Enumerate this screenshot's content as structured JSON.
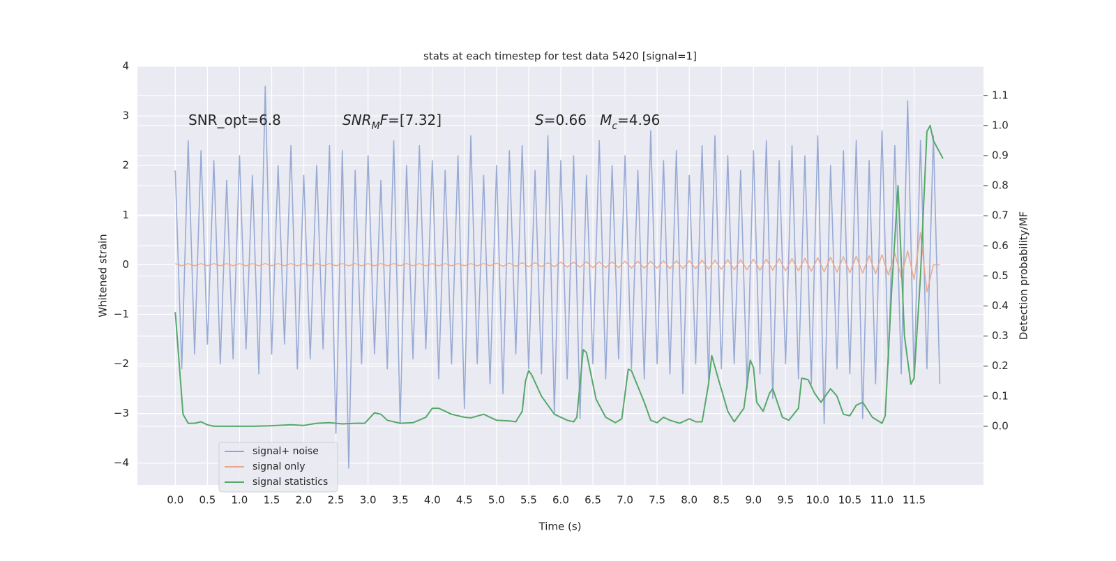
{
  "chart_data": {
    "type": "line",
    "title": "stats at each timestep for test data 5420 [signal=1]",
    "xlabel": "Time (s)",
    "ylabel": "Whitened strain",
    "y2label": "Detection probability/MF",
    "xlim": [
      -0.59,
      12.58
    ],
    "ylim": [
      -4.44,
      4.0
    ],
    "y2lim": [
      -0.195,
      1.197
    ],
    "xticks": [
      {
        "value": 0,
        "label": "0.0"
      },
      0.5,
      {
        "value": 1,
        "label": "1.0"
      },
      1.5,
      {
        "value": 2,
        "label": "2.0"
      },
      2.5,
      {
        "value": 3,
        "label": "3.0"
      },
      3.5,
      {
        "value": 4,
        "label": "4.0"
      },
      4.5,
      {
        "value": 5,
        "label": "5.0"
      },
      5.5,
      {
        "value": 6,
        "label": "6.0"
      },
      6.5,
      {
        "value": 7,
        "label": "7.0"
      },
      7.5,
      {
        "value": 8,
        "label": "8.0"
      },
      8.5,
      {
        "value": 9,
        "label": "9.0"
      },
      9.5,
      {
        "value": 10,
        "label": "10.0"
      },
      10.5,
      {
        "value": 11,
        "label": "11.0"
      },
      11.5
    ],
    "yticks": [
      {
        "value": -4,
        "label": "−4"
      },
      {
        "value": -3,
        "label": "−3"
      },
      {
        "value": -2,
        "label": "−2"
      },
      {
        "value": -1,
        "label": "−1"
      },
      0,
      1,
      2,
      3,
      4
    ],
    "y2ticks": [
      {
        "value": 0,
        "label": "0.0"
      },
      0.1,
      0.2,
      0.3,
      0.4,
      0.5,
      0.6,
      0.7,
      0.8,
      0.9,
      {
        "value": 1,
        "label": "1.0"
      },
      1.1
    ],
    "grid": true,
    "legend": "lower left",
    "annotations": [
      {
        "parts": [
          {
            "text": "SNR_opt=6.8"
          }
        ]
      },
      {
        "parts": [
          {
            "text": "SNR",
            "italic": true
          },
          {
            "text": "M",
            "italic": true,
            "sub": true
          },
          {
            "text": "F",
            "italic": true
          },
          {
            "text": "=[7.32]"
          }
        ]
      },
      {
        "parts": [
          {
            "text": "S",
            "italic": true
          },
          {
            "text": "=0.66   "
          },
          {
            "text": "M",
            "italic": true
          },
          {
            "text": "c",
            "italic": true,
            "sub": true
          },
          {
            "text": "=4.96"
          }
        ]
      }
    ],
    "x": [
      0,
      0.1,
      0.2,
      0.3,
      0.4,
      0.5,
      0.6,
      0.7,
      0.8,
      0.9,
      1,
      1.1,
      1.2,
      1.3,
      1.4,
      1.5,
      1.6,
      1.7,
      1.8,
      1.9,
      2,
      2.1,
      2.2,
      2.3,
      2.4,
      2.5,
      2.6,
      2.7,
      2.8,
      2.9,
      3,
      3.1,
      3.2,
      3.3,
      3.4,
      3.5,
      3.6,
      3.7,
      3.8,
      3.9,
      4,
      4.1,
      4.2,
      4.3,
      4.4,
      4.5,
      4.6,
      4.7,
      4.8,
      4.9,
      5,
      5.1,
      5.2,
      5.3,
      5.4,
      5.5,
      5.6,
      5.7,
      5.8,
      5.9,
      6,
      6.1,
      6.2,
      6.3,
      6.4,
      6.5,
      6.6,
      6.7,
      6.8,
      6.9,
      7,
      7.1,
      7.2,
      7.3,
      7.4,
      7.5,
      7.6,
      7.7,
      7.8,
      7.9,
      8,
      8.1,
      8.2,
      8.3,
      8.4,
      8.5,
      8.6,
      8.7,
      8.8,
      8.9,
      9,
      9.1,
      9.2,
      9.3,
      9.4,
      9.5,
      9.6,
      9.7,
      9.8,
      9.9,
      10,
      10.1,
      10.2,
      10.3,
      10.4,
      10.5,
      10.6,
      10.7,
      10.8,
      10.9,
      11,
      11.1,
      11.2,
      11.3,
      11.4,
      11.5,
      11.6,
      11.7,
      11.8,
      11.9
    ],
    "series": [
      {
        "name": "signal+ noise",
        "color": "#8fa3d0",
        "values": [
          1.9,
          -2.1,
          2.5,
          -1.8,
          2.3,
          -1.6,
          2.1,
          -2.0,
          1.7,
          -1.9,
          2.2,
          -1.7,
          1.8,
          -2.2,
          3.6,
          -1.8,
          2.0,
          -1.6,
          2.4,
          -2.1,
          1.8,
          -1.9,
          2.0,
          -1.7,
          2.4,
          -3.4,
          2.3,
          -4.1,
          1.9,
          -2.0,
          2.2,
          -1.8,
          1.7,
          -2.1,
          2.5,
          -3.2,
          2.0,
          -1.9,
          2.4,
          -1.7,
          2.1,
          -2.3,
          1.9,
          -2.0,
          2.2,
          -2.9,
          2.6,
          -2.0,
          1.8,
          -2.4,
          2.0,
          -2.6,
          2.3,
          -1.8,
          2.4,
          -2.1,
          1.9,
          -2.2,
          2.6,
          -3.0,
          2.1,
          -2.3,
          2.2,
          -3.1,
          1.8,
          -2.0,
          2.5,
          -2.3,
          2.0,
          -1.9,
          2.2,
          -2.1,
          1.9,
          -2.3,
          2.7,
          -2.0,
          2.1,
          -2.2,
          2.3,
          -2.6,
          1.8,
          -2.0,
          2.4,
          -2.3,
          2.6,
          -2.1,
          2.2,
          -2.0,
          1.9,
          -2.5,
          2.3,
          -2.2,
          2.5,
          -2.7,
          2.1,
          -2.0,
          2.4,
          -2.3,
          2.2,
          -2.4,
          2.6,
          -3.2,
          2.0,
          -2.1,
          2.3,
          -2.2,
          2.5,
          -3.1,
          2.1,
          -2.4,
          2.7,
          -2.0,
          2.4,
          -2.2,
          3.3,
          -2.3,
          2.5,
          -2.1,
          2.6,
          -2.4
        ]
      },
      {
        "name": "signal only",
        "color": "#e8a68a",
        "values": [
          0.02,
          -0.02,
          0.02,
          -0.02,
          0.02,
          -0.02,
          0.02,
          -0.02,
          0.02,
          -0.02,
          0.02,
          -0.02,
          0.02,
          -0.02,
          0.02,
          -0.02,
          0.02,
          -0.02,
          0.02,
          -0.02,
          0.02,
          -0.02,
          0.02,
          -0.02,
          0.02,
          -0.02,
          0.02,
          -0.02,
          0.02,
          -0.02,
          0.02,
          -0.02,
          0.02,
          -0.02,
          0.02,
          -0.02,
          0.02,
          -0.02,
          0.02,
          -0.02,
          0.02,
          -0.02,
          0.02,
          -0.02,
          0.02,
          -0.02,
          0.02,
          -0.02,
          0.02,
          -0.02,
          0.03,
          -0.03,
          0.03,
          -0.03,
          0.04,
          -0.04,
          0.04,
          -0.04,
          0.04,
          -0.04,
          0.05,
          -0.05,
          0.05,
          -0.05,
          0.06,
          -0.06,
          0.06,
          -0.06,
          0.06,
          -0.06,
          0.07,
          -0.07,
          0.07,
          -0.07,
          0.07,
          -0.07,
          0.08,
          -0.08,
          0.08,
          -0.08,
          0.08,
          -0.08,
          0.09,
          -0.09,
          0.09,
          -0.09,
          0.1,
          -0.1,
          0.1,
          -0.1,
          0.11,
          -0.11,
          0.11,
          -0.11,
          0.12,
          -0.12,
          0.12,
          -0.12,
          0.13,
          -0.13,
          0.14,
          -0.14,
          0.15,
          -0.15,
          0.16,
          -0.16,
          0.17,
          -0.17,
          0.18,
          -0.18,
          0.2,
          -0.21,
          0.23,
          -0.25,
          0.28,
          -0.3,
          0.65,
          -0.55,
          0,
          0
        ]
      },
      {
        "name": "signal statistics",
        "color": "#55a868",
        "axis": "y2",
        "x": [
          0,
          0.12,
          0.2,
          0.3,
          0.4,
          0.5,
          0.6,
          0.8,
          1.0,
          1.2,
          1.5,
          1.8,
          2.0,
          2.2,
          2.4,
          2.6,
          2.8,
          2.95,
          3.1,
          3.2,
          3.3,
          3.5,
          3.7,
          3.9,
          4.0,
          4.1,
          4.3,
          4.5,
          4.6,
          4.8,
          5.0,
          5.2,
          5.3,
          5.4,
          5.45,
          5.5,
          5.55,
          5.7,
          5.9,
          6.1,
          6.2,
          6.25,
          6.35,
          6.4,
          6.55,
          6.7,
          6.85,
          6.95,
          7.05,
          7.1,
          7.3,
          7.4,
          7.5,
          7.6,
          7.7,
          7.85,
          8.0,
          8.1,
          8.2,
          8.3,
          8.35,
          8.45,
          8.6,
          8.7,
          8.85,
          8.95,
          9.0,
          9.05,
          9.15,
          9.25,
          9.3,
          9.45,
          9.55,
          9.7,
          9.75,
          9.85,
          9.95,
          10.05,
          10.15,
          10.2,
          10.3,
          10.4,
          10.5,
          10.6,
          10.7,
          10.85,
          11.0,
          11.05,
          11.15,
          11.25,
          11.35,
          11.45,
          11.5,
          11.6,
          11.7,
          11.75,
          11.8,
          11.95
        ],
        "values": [
          0.38,
          0.04,
          0.01,
          0.01,
          0.015,
          0.005,
          0.0,
          0.0,
          0.0,
          0.0,
          0.002,
          0.005,
          0.003,
          0.01,
          0.012,
          0.008,
          0.01,
          0.01,
          0.045,
          0.04,
          0.02,
          0.01,
          0.012,
          0.03,
          0.06,
          0.06,
          0.04,
          0.03,
          0.028,
          0.04,
          0.02,
          0.018,
          0.015,
          0.05,
          0.15,
          0.185,
          0.17,
          0.1,
          0.04,
          0.02,
          0.015,
          0.03,
          0.255,
          0.245,
          0.09,
          0.03,
          0.012,
          0.025,
          0.19,
          0.185,
          0.08,
          0.02,
          0.012,
          0.03,
          0.02,
          0.01,
          0.025,
          0.015,
          0.015,
          0.14,
          0.235,
          0.16,
          0.05,
          0.015,
          0.06,
          0.22,
          0.195,
          0.08,
          0.05,
          0.11,
          0.125,
          0.03,
          0.02,
          0.06,
          0.16,
          0.155,
          0.11,
          0.08,
          0.11,
          0.125,
          0.1,
          0.04,
          0.035,
          0.07,
          0.08,
          0.03,
          0.01,
          0.035,
          0.45,
          0.8,
          0.3,
          0.14,
          0.16,
          0.5,
          0.98,
          1.0,
          0.95,
          0.89
        ]
      }
    ]
  }
}
